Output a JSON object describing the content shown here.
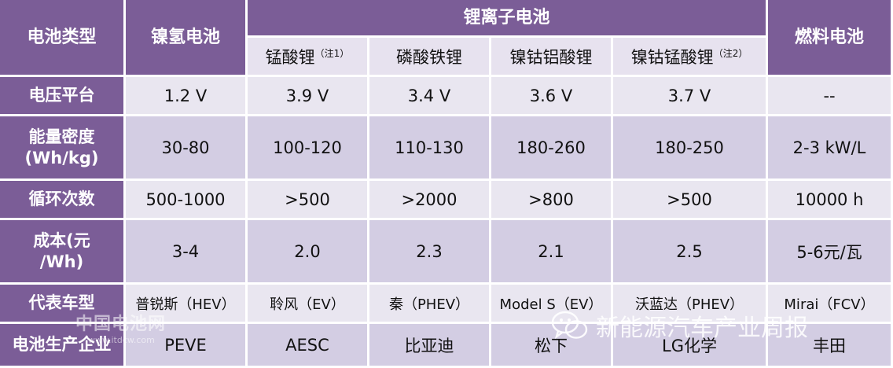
{
  "header": {
    "type_label": "电池类型",
    "nimh": "镍氢电池",
    "li_ion": "锂离子电池",
    "fuel_cell": "燃料电池",
    "sub": [
      {
        "name": "锰酸锂",
        "note": "（注1）"
      },
      {
        "name": "磷酸铁锂",
        "note": ""
      },
      {
        "name": "镍钴铝酸锂",
        "note": ""
      },
      {
        "name": "镍钴锰酸锂",
        "note": "（注2）"
      }
    ]
  },
  "rows": [
    {
      "label": "电压平台",
      "cells": [
        "1.2 V",
        "3.9 V",
        "3.4 V",
        "3.6 V",
        "3.7 V",
        "--"
      ]
    },
    {
      "label": "能量密度\n(Wh/kg)",
      "cells": [
        "30-80",
        "100-120",
        "110-130",
        "180-260",
        "180-250",
        "2-3 kW/L"
      ]
    },
    {
      "label": "循环次数",
      "cells": [
        "500-1000",
        ">500",
        ">2000",
        ">800",
        ">500",
        "10000 h"
      ]
    },
    {
      "label": "成本(元\n/Wh)",
      "cells": [
        "3-4",
        "2.0",
        "2.3",
        "2.1",
        "2.5",
        "5-6元/瓦"
      ]
    },
    {
      "label": "代表车型",
      "cells": [
        "普锐斯（HEV）",
        "聆风（EV）",
        "秦（PHEV）",
        "Model S（EV）",
        "沃蓝达（PHEV）",
        "Mirai（FCV）"
      ]
    },
    {
      "label": "电池生产企业",
      "cells": [
        "PEVE",
        "AESC",
        "比亚迪",
        "松下",
        "LG化学",
        "丰田"
      ]
    }
  ],
  "watermarks": {
    "site": "中国电池网",
    "url": "www.itdcw.com",
    "wechat": "新能源汽车产业周报",
    "icon": "wechat-icon"
  }
}
